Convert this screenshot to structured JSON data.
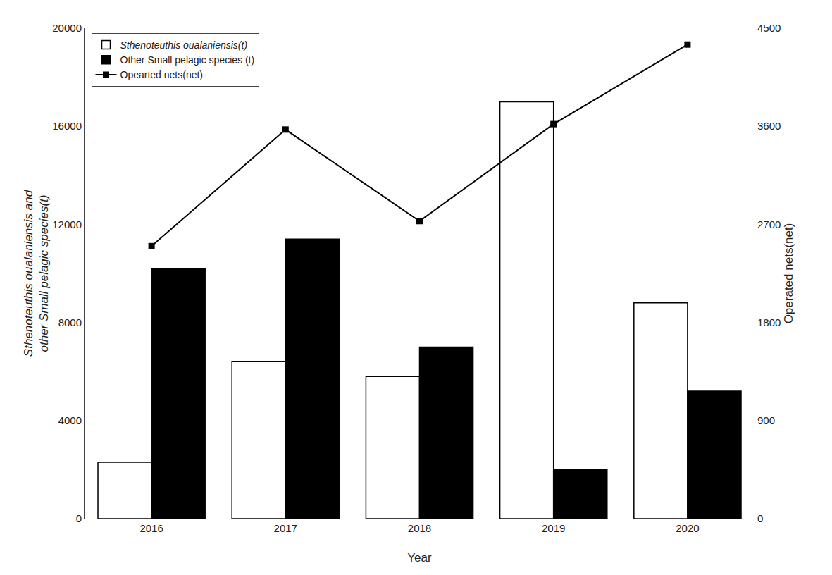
{
  "chart_data": {
    "type": "bar",
    "categories": [
      "2016",
      "2017",
      "2018",
      "2019",
      "2020"
    ],
    "series": [
      {
        "name": "Sthenoteuthis oualaniensis(t)",
        "type": "bar",
        "color": "#ffffff",
        "values": [
          2300,
          6400,
          5800,
          17000,
          8800
        ]
      },
      {
        "name": "Other Small pelagic species (t)",
        "type": "bar",
        "color": "#000000",
        "values": [
          10200,
          11400,
          7000,
          2000,
          5200
        ]
      },
      {
        "name": "Opearted nets(net)",
        "type": "line",
        "axis": "y2",
        "color": "#000000",
        "marker": "square",
        "line_style": "solid",
        "values": [
          2500,
          3570,
          2730,
          3620,
          4350
        ]
      }
    ],
    "xlabel": "Year",
    "ylabel": "Sthenoteuthis oualaniensis and\nother Small pelagic species(t)",
    "y2label": "Operated nets(net)",
    "ylim": [
      0,
      20000
    ],
    "yticks": [
      0,
      4000,
      8000,
      12000,
      16000,
      20000
    ],
    "y2lim": [
      0,
      4500
    ],
    "y2ticks": [
      0,
      900,
      1800,
      2700,
      3600,
      4500
    ],
    "grid": false,
    "legend": "upper left"
  }
}
